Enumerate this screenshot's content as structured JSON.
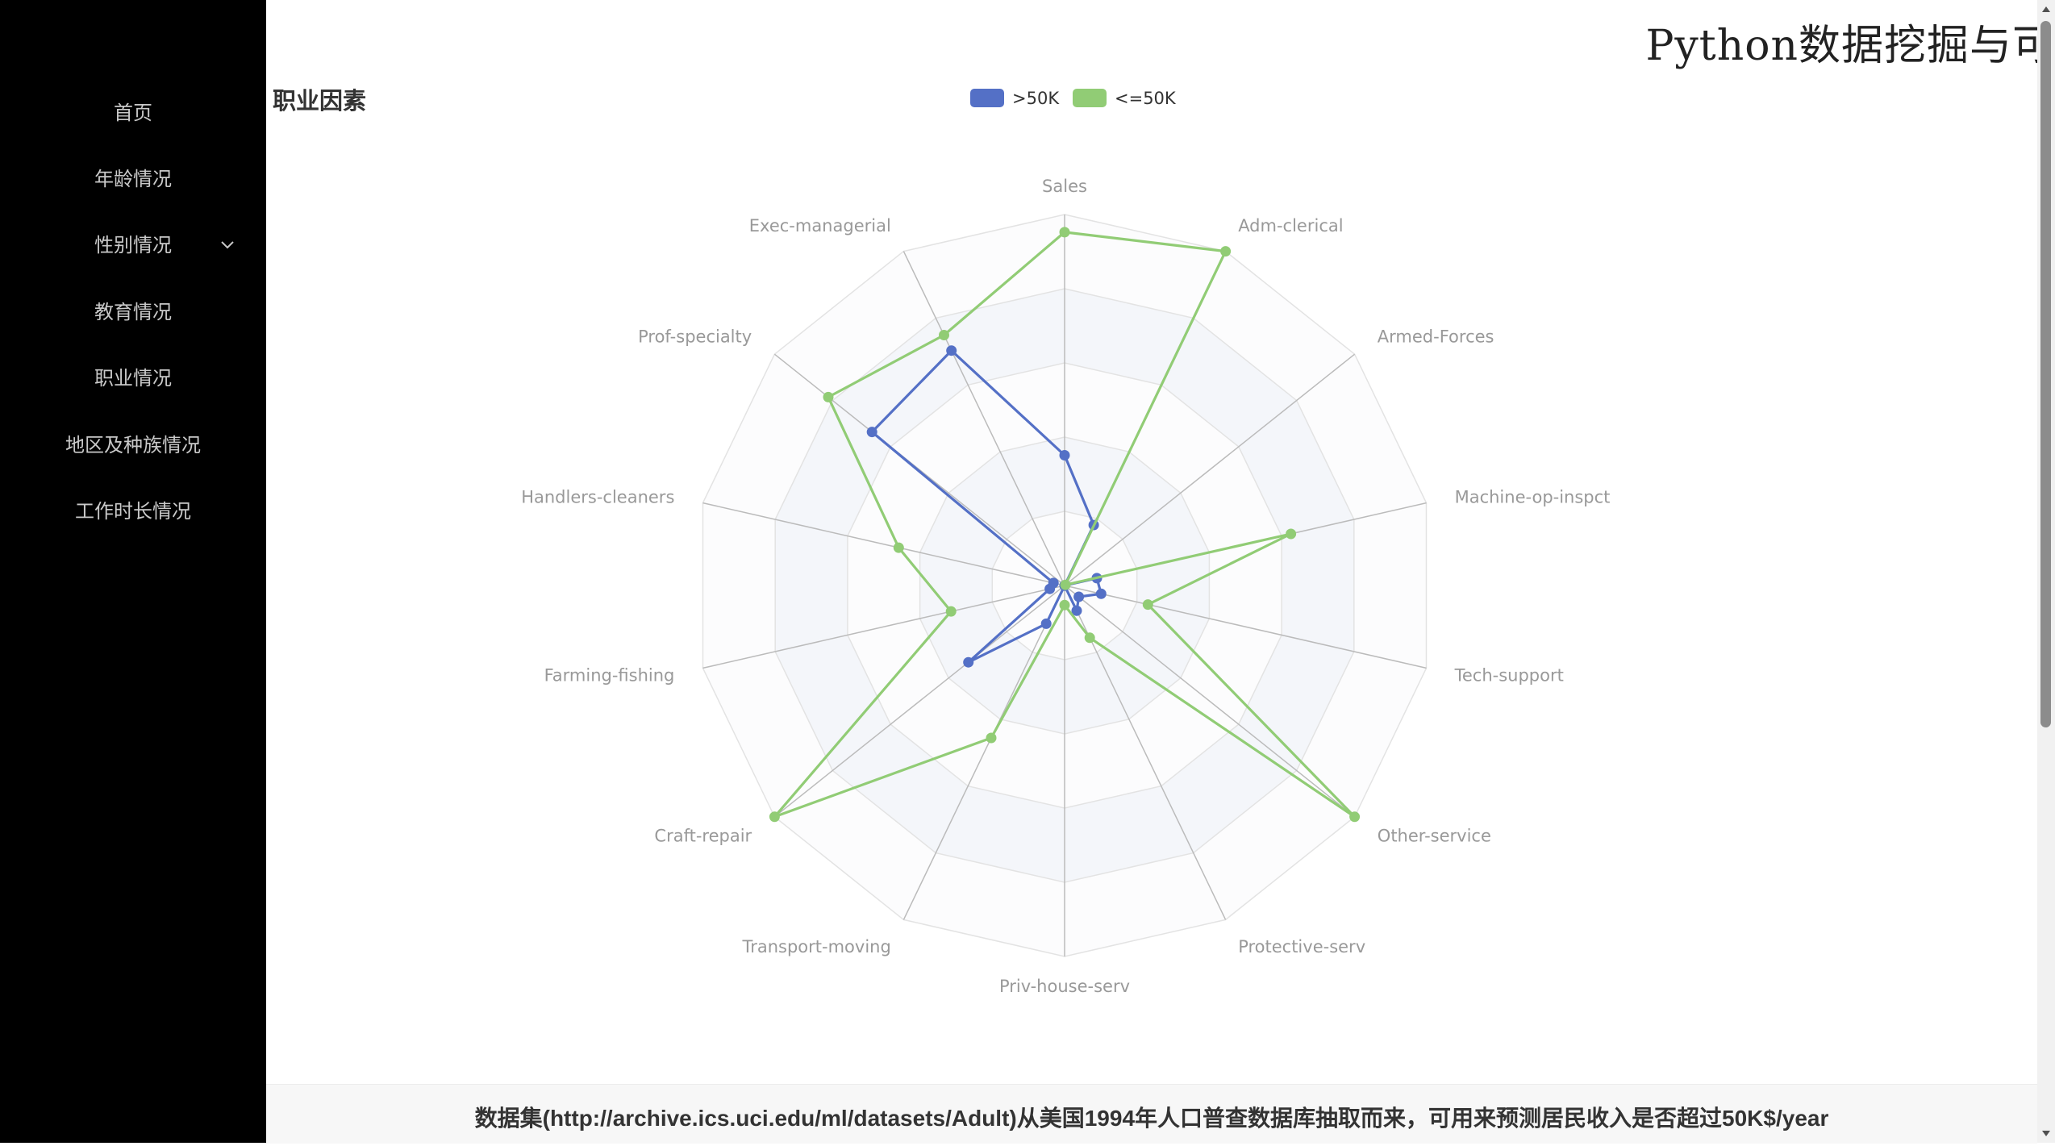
{
  "sidebar": {
    "items": [
      {
        "label": "首页"
      },
      {
        "label": "年龄情况"
      },
      {
        "label": "性别情况",
        "has_submenu": true
      },
      {
        "label": "教育情况"
      },
      {
        "label": "职业情况"
      },
      {
        "label": "地区及种族情况"
      },
      {
        "label": "工作时长情况"
      }
    ]
  },
  "header": {
    "corner_title": "Python数据挖掘与可"
  },
  "page": {
    "heading": "职业因素"
  },
  "footer": {
    "text": "数据集(http://archive.ics.uci.edu/ml/datasets/Adult)从美国1994年人口普查数据库抽取而来，可用来预测居民收入是否超过50K$/year"
  },
  "colors": {
    "sidebar_bg": "#000000",
    "series_gt50k": "#5470c6",
    "series_le50k": "#91cc75",
    "split_area": "#f4f6fa",
    "axis_line": "#bbbbbb",
    "axis_label": "#999999"
  },
  "chart_data": {
    "type": "radar",
    "title": "",
    "legend": {
      "position": "top-center",
      "entries": [
        ">50K",
        "<=50K"
      ]
    },
    "grid": true,
    "split_number": 5,
    "indicators": [
      {
        "name": "Sales",
        "max": 2800
      },
      {
        "name": "Adm-clerical",
        "max": 2800
      },
      {
        "name": "Armed-Forces",
        "max": 2800
      },
      {
        "name": "Machine-op-inspct",
        "max": 2800
      },
      {
        "name": "Tech-support",
        "max": 2800
      },
      {
        "name": "Other-service",
        "max": 2800
      },
      {
        "name": "Protective-serv",
        "max": 2800
      },
      {
        "name": "Priv-house-serv",
        "max": 2800
      },
      {
        "name": "Transport-moving",
        "max": 2800
      },
      {
        "name": "Craft-repair",
        "max": 2800
      },
      {
        "name": "Farming-fishing",
        "max": 2800
      },
      {
        "name": "Handlers-cleaners",
        "max": 2800
      },
      {
        "name": "Prof-specialty",
        "max": 2800
      },
      {
        "name": "Exec-managerial",
        "max": 2800
      }
    ],
    "series": [
      {
        "name": ">50K",
        "color": "#5470c6",
        "values": [
          983,
          507,
          1,
          250,
          283,
          137,
          211,
          1,
          320,
          929,
          115,
          86,
          1859,
          1968
        ]
      },
      {
        "name": "<=50K",
        "color": "#91cc75",
        "values": [
          2667,
          3263,
          8,
          1752,
          645,
          3158,
          438,
          148,
          1277,
          3170,
          879,
          1284,
          2281,
          2098
        ]
      }
    ]
  }
}
